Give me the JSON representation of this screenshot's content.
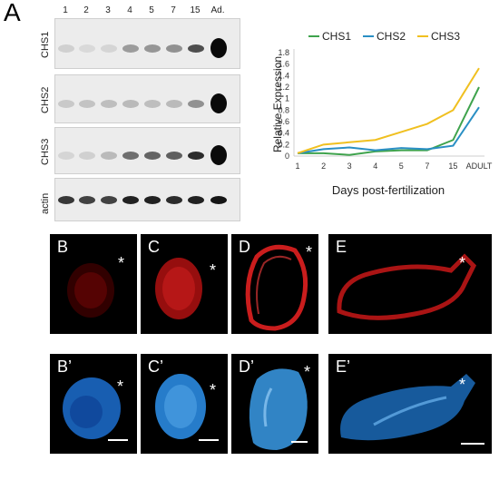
{
  "panel_a_letter": "A",
  "gel": {
    "lanes": [
      "1",
      "2",
      "3",
      "4",
      "5",
      "7",
      "15",
      "Ad."
    ],
    "rows": [
      {
        "label": "CHS1",
        "bands": [
          0.12,
          0.08,
          0.1,
          0.35,
          0.38,
          0.4,
          0.7,
          1.0
        ]
      },
      {
        "label": "CHS2",
        "bands": [
          0.15,
          0.18,
          0.2,
          0.22,
          0.2,
          0.22,
          0.4,
          1.0
        ]
      },
      {
        "label": "CHS3",
        "bands": [
          0.1,
          0.12,
          0.22,
          0.55,
          0.6,
          0.62,
          0.85,
          1.0
        ]
      },
      {
        "label": "actin",
        "bands": [
          0.8,
          0.75,
          0.75,
          0.9,
          0.9,
          0.85,
          0.9,
          0.95
        ]
      }
    ]
  },
  "chart_data": {
    "type": "line",
    "categories": [
      "1",
      "2",
      "3",
      "4",
      "5",
      "7",
      "15",
      "ADULT"
    ],
    "series": [
      {
        "name": "CHS1",
        "color": "#3fa34d",
        "values": [
          0.05,
          0.05,
          0.02,
          0.08,
          0.1,
          0.1,
          0.28,
          1.2
        ]
      },
      {
        "name": "CHS2",
        "color": "#2a8fc4",
        "values": [
          0.05,
          0.12,
          0.15,
          0.1,
          0.14,
          0.12,
          0.18,
          0.85
        ]
      },
      {
        "name": "CHS3",
        "color": "#f0c020",
        "values": [
          0.05,
          0.2,
          0.24,
          0.28,
          0.42,
          0.56,
          0.8,
          1.53
        ]
      }
    ],
    "ylim": [
      0,
      1.8
    ],
    "yticks": [
      "0",
      "0.2",
      "0.4",
      "0.6",
      "0.8",
      "1",
      "1.2",
      "1.4",
      "1.6",
      "1.8"
    ],
    "xlabel": "Days post-fertilization",
    "ylabel": "Relative Expression",
    "grid": false,
    "legend": "top"
  },
  "micro": {
    "B": "B",
    "C": "C",
    "D": "D",
    "E": "E",
    "B2": "B’",
    "C2": "C’",
    "D2": "D’",
    "E2": "E’",
    "asterisk": "*"
  },
  "colors": {
    "red_stain": "#d01010",
    "blue_stain": "#2a8ae0"
  }
}
